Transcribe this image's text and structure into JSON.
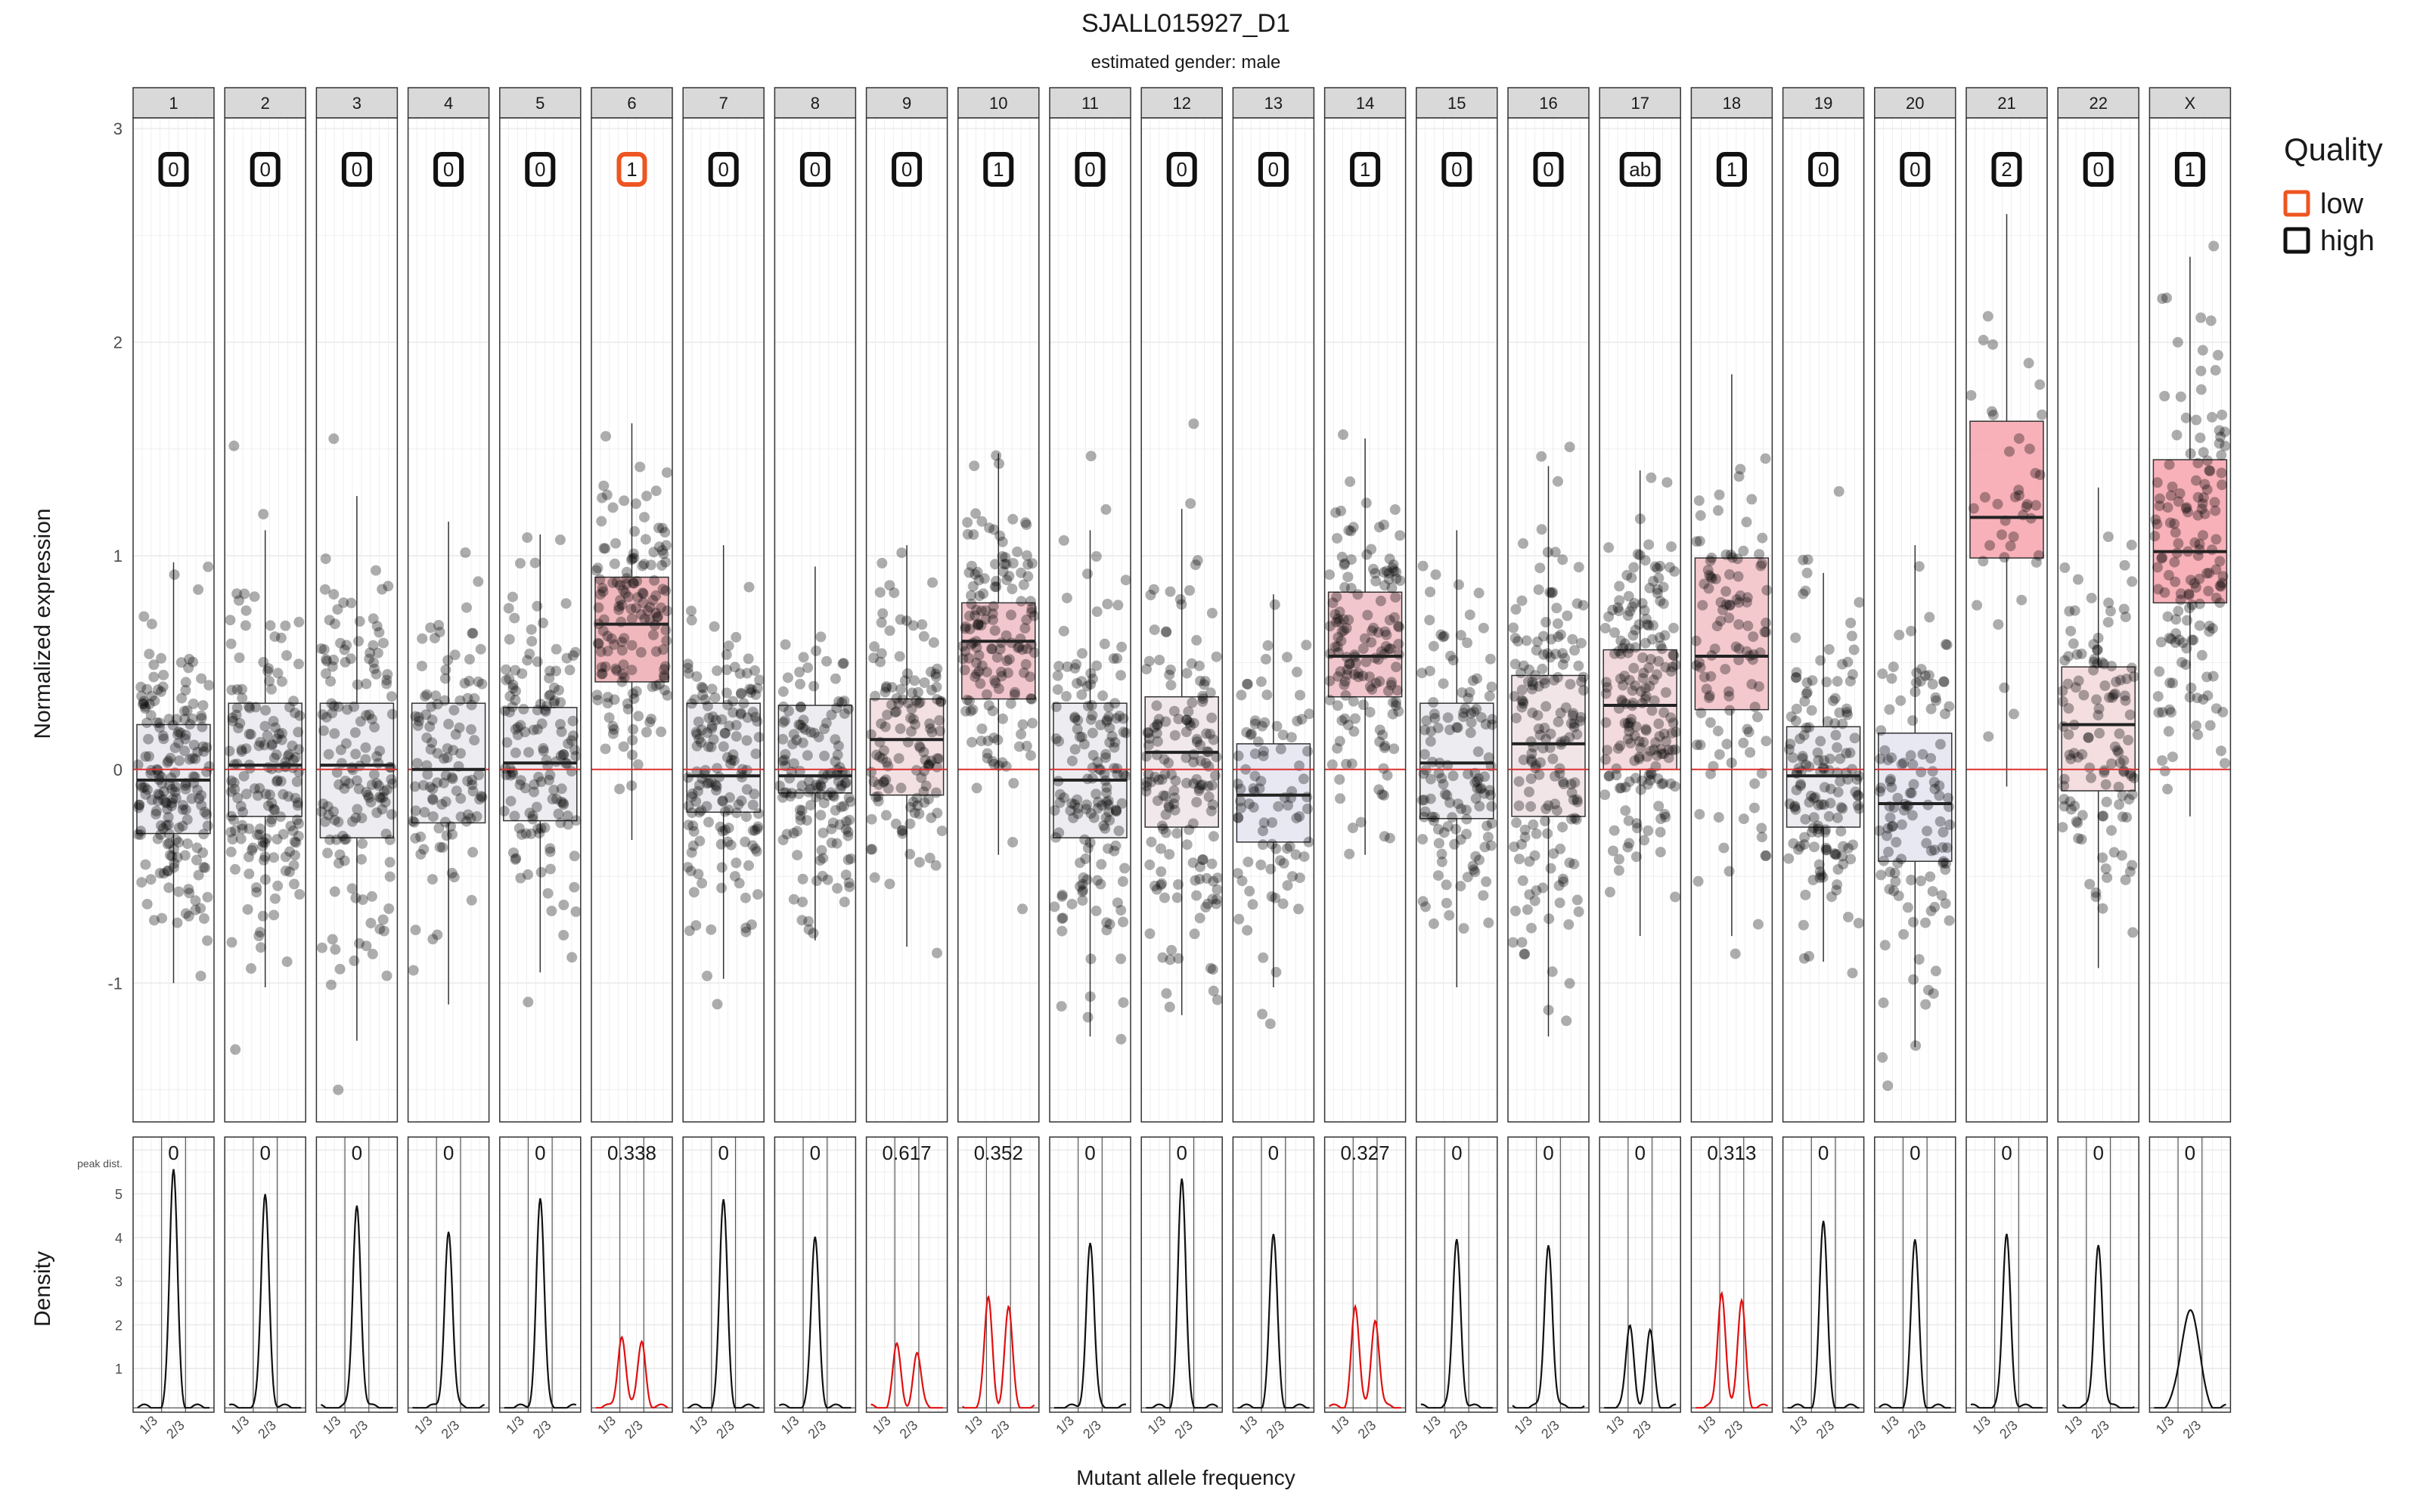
{
  "chart_data": {
    "type": "boxplot-density-grid",
    "title": "SJALL015927_D1",
    "subtitle": "estimated gender: male",
    "top_ylabel": "Normalized expression",
    "bottom_ylabel": "Density",
    "xlabel": "Mutant allele frequency",
    "top_ylim": [
      -1.65,
      3.05
    ],
    "top_yticks": [
      "-1",
      "0",
      "1",
      "2",
      "3"
    ],
    "bottom_ylim": [
      0,
      6.3
    ],
    "bottom_yticks": [
      "1",
      "2",
      "3",
      "4",
      "5"
    ],
    "peak_label": "peak dist.",
    "maf_ticks": [
      "1/3",
      "2/3"
    ],
    "legend": {
      "title": "Quality",
      "items": [
        {
          "label": "low",
          "color": "#ee5522"
        },
        {
          "label": "high",
          "color": "#111111"
        }
      ]
    },
    "reference_line": 0,
    "chromosomes": [
      {
        "name": "1",
        "badge": "0",
        "quality": "high",
        "q1": -0.3,
        "median": -0.05,
        "q3": 0.21,
        "wlo": -1.0,
        "whi": 0.97,
        "fill": "#e8e8ee",
        "n": 190,
        "peak": "0",
        "kind": "uni",
        "dp": 5.5
      },
      {
        "name": "2",
        "badge": "0",
        "quality": "high",
        "q1": -0.22,
        "median": 0.02,
        "q3": 0.31,
        "wlo": -1.02,
        "whi": 1.12,
        "fill": "#ebebef",
        "n": 170,
        "peak": "0",
        "kind": "uni",
        "dp": 5.0
      },
      {
        "name": "3",
        "badge": "0",
        "quality": "high",
        "q1": -0.32,
        "median": 0.02,
        "q3": 0.31,
        "wlo": -1.27,
        "whi": 1.28,
        "fill": "#ebebef",
        "n": 150,
        "peak": "0",
        "kind": "uni",
        "dp": 4.8
      },
      {
        "name": "4",
        "badge": "0",
        "quality": "high",
        "q1": -0.25,
        "median": 0.0,
        "q3": 0.31,
        "wlo": -1.1,
        "whi": 1.16,
        "fill": "#ebebef",
        "n": 110,
        "peak": "0",
        "kind": "uni",
        "dp": 4.2
      },
      {
        "name": "5",
        "badge": "0",
        "quality": "high",
        "q1": -0.24,
        "median": 0.03,
        "q3": 0.29,
        "wlo": -0.95,
        "whi": 1.1,
        "fill": "#ebebef",
        "n": 140,
        "peak": "0",
        "kind": "uni",
        "dp": 4.9
      },
      {
        "name": "6",
        "badge": "1",
        "quality": "low",
        "q1": 0.41,
        "median": 0.68,
        "q3": 0.9,
        "wlo": -0.33,
        "whi": 1.62,
        "fill": "#eeb0b6",
        "n": 150,
        "peak": "0.338",
        "kind": "bi",
        "dp": 1.8
      },
      {
        "name": "7",
        "badge": "0",
        "quality": "high",
        "q1": -0.2,
        "median": -0.03,
        "q3": 0.31,
        "wlo": -0.98,
        "whi": 1.05,
        "fill": "#ebebef",
        "n": 160,
        "peak": "0",
        "kind": "uni",
        "dp": 4.8
      },
      {
        "name": "8",
        "badge": "0",
        "quality": "high",
        "q1": -0.11,
        "median": -0.03,
        "q3": 0.3,
        "wlo": -0.8,
        "whi": 0.95,
        "fill": "#ebebef",
        "n": 140,
        "peak": "0",
        "kind": "uni",
        "dp": 4.0
      },
      {
        "name": "9",
        "badge": "0",
        "quality": "high",
        "q1": -0.12,
        "median": 0.14,
        "q3": 0.33,
        "wlo": -0.83,
        "whi": 1.05,
        "fill": "#f2dde0",
        "n": 130,
        "peak": "0.617",
        "kind": "bi",
        "dp": 1.5
      },
      {
        "name": "10",
        "badge": "1",
        "quality": "high",
        "q1": 0.33,
        "median": 0.6,
        "q3": 0.78,
        "wlo": -0.4,
        "whi": 1.48,
        "fill": "#f0c0c6",
        "n": 150,
        "peak": "0.352",
        "kind": "bi",
        "dp": 2.6
      },
      {
        "name": "11",
        "badge": "0",
        "quality": "high",
        "q1": -0.32,
        "median": -0.05,
        "q3": 0.31,
        "wlo": -1.25,
        "whi": 1.12,
        "fill": "#ebebef",
        "n": 160,
        "peak": "0",
        "kind": "uni",
        "dp": 3.9
      },
      {
        "name": "12",
        "badge": "0",
        "quality": "high",
        "q1": -0.27,
        "median": 0.08,
        "q3": 0.34,
        "wlo": -1.15,
        "whi": 1.22,
        "fill": "#efe6ea",
        "n": 160,
        "peak": "0",
        "kind": "uni",
        "dp": 5.3
      },
      {
        "name": "13",
        "badge": "0",
        "quality": "high",
        "q1": -0.34,
        "median": -0.12,
        "q3": 0.12,
        "wlo": -1.02,
        "whi": 0.82,
        "fill": "#e6e6f2",
        "n": 90,
        "peak": "0",
        "kind": "uni",
        "dp": 4.0
      },
      {
        "name": "14",
        "badge": "1",
        "quality": "high",
        "q1": 0.34,
        "median": 0.53,
        "q3": 0.83,
        "wlo": -0.4,
        "whi": 1.55,
        "fill": "#f0c0c6",
        "n": 150,
        "peak": "0.327",
        "kind": "bi",
        "dp": 2.4
      },
      {
        "name": "15",
        "badge": "0",
        "quality": "high",
        "q1": -0.23,
        "median": 0.03,
        "q3": 0.31,
        "wlo": -1.02,
        "whi": 1.12,
        "fill": "#ebebef",
        "n": 130,
        "peak": "0",
        "kind": "uni",
        "dp": 4.0
      },
      {
        "name": "16",
        "badge": "0",
        "quality": "high",
        "q1": -0.22,
        "median": 0.12,
        "q3": 0.44,
        "wlo": -1.25,
        "whi": 1.42,
        "fill": "#f0e2e4",
        "n": 170,
        "peak": "0",
        "kind": "uni",
        "dp": 3.9
      },
      {
        "name": "17",
        "badge": "ab",
        "quality": "high",
        "q1": 0.0,
        "median": 0.3,
        "q3": 0.56,
        "wlo": -0.78,
        "whi": 1.4,
        "fill": "#f2d6da",
        "n": 190,
        "peak": "0",
        "kind": "bi",
        "dp": 2.0
      },
      {
        "name": "18",
        "badge": "1",
        "quality": "high",
        "q1": 0.28,
        "median": 0.53,
        "q3": 0.99,
        "wlo": -0.78,
        "whi": 1.85,
        "fill": "#f3c3c9",
        "n": 110,
        "peak": "0.313",
        "kind": "bi",
        "dp": 2.8
      },
      {
        "name": "19",
        "badge": "0",
        "quality": "high",
        "q1": -0.27,
        "median": -0.03,
        "q3": 0.2,
        "wlo": -0.9,
        "whi": 0.92,
        "fill": "#ebebef",
        "n": 150,
        "peak": "0",
        "kind": "uni",
        "dp": 4.3
      },
      {
        "name": "20",
        "badge": "0",
        "quality": "high",
        "q1": -0.43,
        "median": -0.16,
        "q3": 0.17,
        "wlo": -1.3,
        "whi": 1.05,
        "fill": "#e6e6f2",
        "n": 120,
        "peak": "0",
        "kind": "uni",
        "dp": 3.9
      },
      {
        "name": "21",
        "badge": "2",
        "quality": "high",
        "q1": 0.99,
        "median": 1.18,
        "q3": 1.63,
        "wlo": -0.08,
        "whi": 2.6,
        "fill": "#f7a9b1",
        "n": 40,
        "peak": "0",
        "kind": "uni",
        "dp": 4.1
      },
      {
        "name": "22",
        "badge": "0",
        "quality": "high",
        "q1": -0.1,
        "median": 0.21,
        "q3": 0.48,
        "wlo": -0.93,
        "whi": 1.32,
        "fill": "#f3dadd",
        "n": 120,
        "peak": "0",
        "kind": "uni",
        "dp": 3.9
      },
      {
        "name": "X",
        "badge": "1",
        "quality": "high",
        "q1": 0.78,
        "median": 1.02,
        "q3": 1.45,
        "wlo": -0.22,
        "whi": 2.4,
        "fill": "#f7a9b1",
        "n": 150,
        "peak": "0",
        "kind": "wide",
        "dp": 2.4
      }
    ]
  }
}
